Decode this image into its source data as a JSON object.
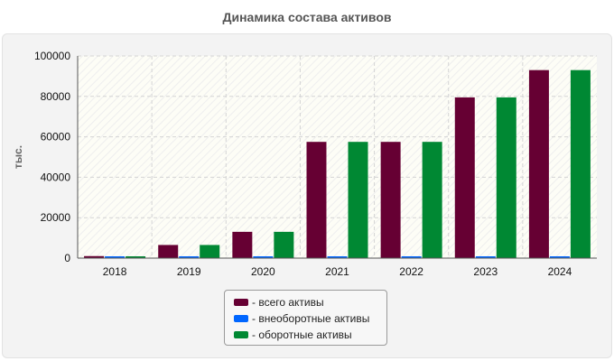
{
  "chart_data": {
    "type": "bar",
    "title": "Динамика состава активов",
    "ylabel": "тыс.",
    "xlabel": "",
    "categories": [
      "2018",
      "2019",
      "2020",
      "2021",
      "2022",
      "2023",
      "2024"
    ],
    "series": [
      {
        "name": "- всего активы",
        "color": "#660033",
        "values": [
          1000,
          6500,
          13000,
          57500,
          57500,
          79500,
          93000
        ]
      },
      {
        "name": "- внеоборотные активы",
        "color": "#0066ff",
        "values": [
          600,
          300,
          300,
          300,
          300,
          300,
          300
        ]
      },
      {
        "name": "- оборотные активы",
        "color": "#008833",
        "values": [
          700,
          6500,
          13000,
          57500,
          57500,
          79500,
          93000
        ]
      }
    ],
    "ylim": [
      0,
      100000
    ],
    "yticks": [
      "0",
      "20000",
      "40000",
      "60000",
      "80000",
      "100000"
    ],
    "grid": true,
    "legend_position": "bottom"
  }
}
